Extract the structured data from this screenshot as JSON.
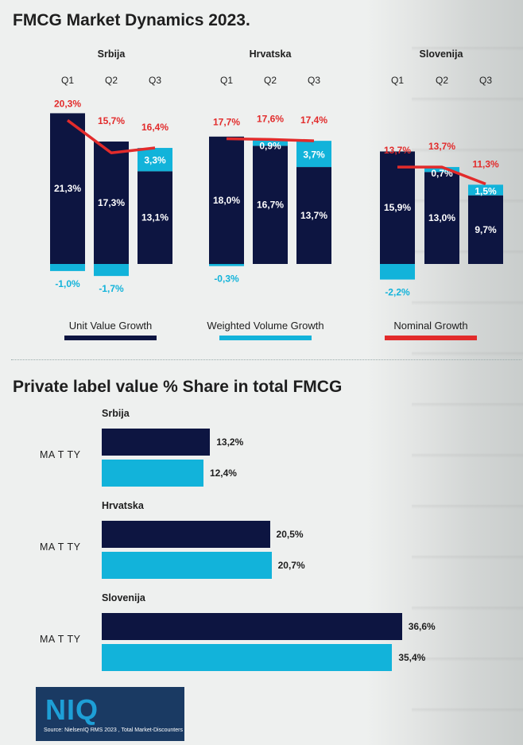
{
  "title": "FMCG Market Dynamics 2023.",
  "colors": {
    "navy": "#0d1541",
    "cyan": "#12b3da",
    "red": "#e22b2b"
  },
  "chart_data": [
    {
      "type": "bar",
      "title": "FMCG Market Dynamics 2023.",
      "stacked": true,
      "legend": [
        "Unit Value Growth",
        "Weighted Volume Growth",
        "Nominal Growth"
      ],
      "legend_position": "bottom",
      "categories": [
        "Q1",
        "Q2",
        "Q3"
      ],
      "groups": [
        {
          "name": "Srbija",
          "unit_value": [
            21.3,
            17.3,
            13.1
          ],
          "volume": [
            -1.0,
            -1.7,
            3.3
          ],
          "nominal": [
            20.3,
            15.7,
            16.4
          ],
          "unit_value_labels": [
            "21,3%",
            "17,3%",
            "13,1%"
          ],
          "volume_labels": [
            "-1,0%",
            "-1,7%",
            "3,3%"
          ],
          "nominal_labels": [
            "20,3%",
            "15,7%",
            "16,4%"
          ]
        },
        {
          "name": "Hrvatska",
          "unit_value": [
            18.0,
            16.7,
            13.7
          ],
          "volume": [
            -0.3,
            0.9,
            3.7
          ],
          "nominal": [
            17.7,
            17.6,
            17.4
          ],
          "unit_value_labels": [
            "18,0%",
            "16,7%",
            "13,7%"
          ],
          "volume_labels": [
            "-0,3%",
            "0,9%",
            "3,7%"
          ],
          "nominal_labels": [
            "17,7%",
            "17,6%",
            "17,4%"
          ]
        },
        {
          "name": "Slovenija",
          "unit_value": [
            15.9,
            13.0,
            9.7
          ],
          "volume": [
            -2.2,
            0.7,
            1.5
          ],
          "nominal": [
            13.7,
            13.7,
            11.3
          ],
          "unit_value_labels": [
            "15,9%",
            "13,0%",
            "9,7%"
          ],
          "volume_labels": [
            "-2,2%",
            "0,7%",
            "1,5%"
          ],
          "nominal_labels": [
            "13,7%",
            "13,7%",
            "11,3%"
          ]
        }
      ]
    },
    {
      "type": "bar",
      "orientation": "horizontal",
      "title": "Private label value % Share in total FMCG",
      "category_label": "MA T TY",
      "groups": [
        {
          "name": "Srbija",
          "values": [
            13.2,
            12.4
          ],
          "labels": [
            "13,2%",
            "12,4%"
          ]
        },
        {
          "name": "Hrvatska",
          "values": [
            20.5,
            20.7
          ],
          "labels": [
            "20,5%",
            "20,7%"
          ]
        },
        {
          "name": "Slovenija",
          "values": [
            36.6,
            35.4
          ],
          "labels": [
            "36,6%",
            "35,4%"
          ]
        }
      ]
    }
  ],
  "section2_title": "Private label value % Share in total FMCG",
  "logo": {
    "text": "NIQ",
    "source": "Source: NielsenIQ RMS 2023 , Total Market-Discounters"
  }
}
